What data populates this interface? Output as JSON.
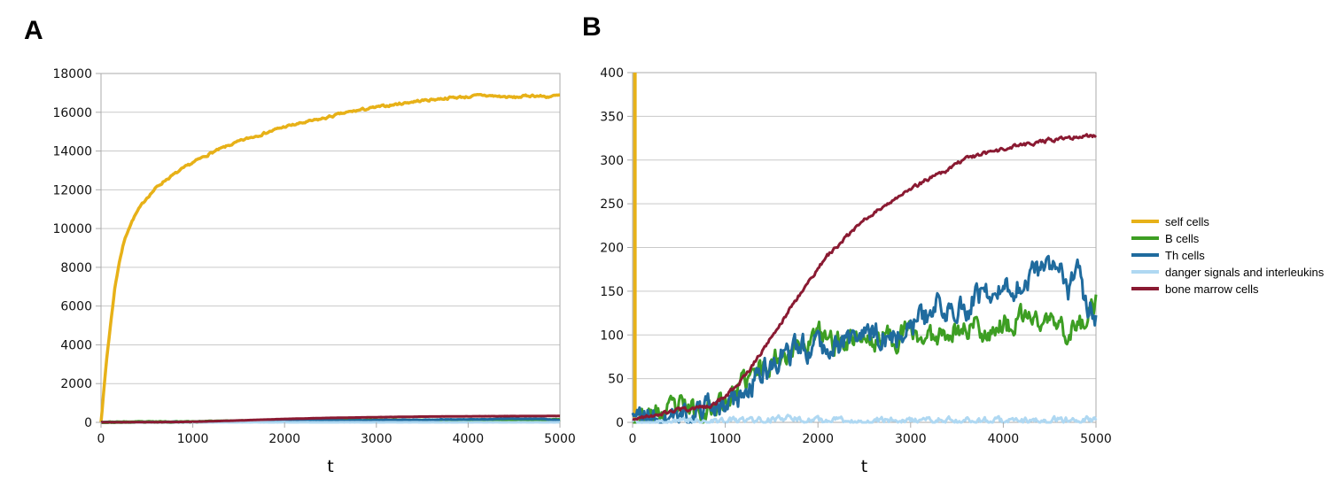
{
  "figure": {
    "background": "#ffffff"
  },
  "legend": {
    "position": "right-of-panel-B",
    "items": [
      {
        "label": "self cells",
        "color": "#E7B118"
      },
      {
        "label": "B cells",
        "color": "#3D9E23"
      },
      {
        "label": "Th cells",
        "color": "#1F6B9E"
      },
      {
        "label": "danger signals and interleukins",
        "color": "#AFD8F2"
      },
      {
        "label": "bone marrow cells",
        "color": "#8A1A32"
      }
    ]
  },
  "style": {
    "gridline_color": "#c9c9c9",
    "border_color": "#ababab",
    "tick_label_color": "#111111",
    "grid": "horizontal-only"
  },
  "chart_data": [
    {
      "type": "line",
      "panel_label": "A",
      "title": "",
      "xlabel": "t",
      "ylabel": "",
      "xlim": [
        0,
        5000
      ],
      "ylim": [
        0,
        18000
      ],
      "xticks": [
        0,
        1000,
        2000,
        3000,
        4000,
        5000
      ],
      "yticks": [
        0,
        2000,
        4000,
        6000,
        8000,
        10000,
        12000,
        14000,
        16000,
        18000
      ],
      "series": [
        {
          "name": "self cells",
          "color": "#E7B118",
          "width": 3.5,
          "noise": 40,
          "seed": 7,
          "anchors": [
            [
              0,
              50
            ],
            [
              30,
              1600
            ],
            [
              60,
              3200
            ],
            [
              100,
              4900
            ],
            [
              150,
              6900
            ],
            [
              200,
              8300
            ],
            [
              250,
              9300
            ],
            [
              300,
              10000
            ],
            [
              350,
              10500
            ],
            [
              400,
              10900
            ],
            [
              500,
              11600
            ],
            [
              600,
              12100
            ],
            [
              700,
              12500
            ],
            [
              800,
              12800
            ],
            [
              900,
              13100
            ],
            [
              1000,
              13400
            ],
            [
              1200,
              13900
            ],
            [
              1400,
              14300
            ],
            [
              1600,
              14650
            ],
            [
              1800,
              14950
            ],
            [
              2000,
              15250
            ],
            [
              2200,
              15450
            ],
            [
              2400,
              15650
            ],
            [
              2600,
              15900
            ],
            [
              2800,
              16100
            ],
            [
              3000,
              16250
            ],
            [
              3200,
              16400
            ],
            [
              3400,
              16550
            ],
            [
              3600,
              16650
            ],
            [
              3800,
              16750
            ],
            [
              4000,
              16800
            ],
            [
              4150,
              16880
            ],
            [
              4300,
              16830
            ],
            [
              4500,
              16760
            ],
            [
              4700,
              16870
            ],
            [
              4850,
              16800
            ],
            [
              5000,
              16860
            ]
          ]
        },
        {
          "name": "B cells",
          "color": "#3D9E23",
          "width": 4,
          "noise": 9,
          "seed": 23,
          "anchors": [
            [
              0,
              2
            ],
            [
              500,
              16
            ],
            [
              1000,
              25
            ],
            [
              1500,
              72
            ],
            [
              2000,
              100
            ],
            [
              2500,
              97
            ],
            [
              3000,
              104
            ],
            [
              3500,
              104
            ],
            [
              4000,
              112
            ],
            [
              4500,
              118
            ],
            [
              5000,
              136
            ]
          ]
        },
        {
          "name": "Th cells",
          "color": "#1F6B9E",
          "width": 3,
          "noise": 10,
          "seed": 41,
          "anchors": [
            [
              0,
              2
            ],
            [
              500,
              11
            ],
            [
              1000,
              19
            ],
            [
              1500,
              64
            ],
            [
              2000,
              94
            ],
            [
              2500,
              95
            ],
            [
              3000,
              108
            ],
            [
              3500,
              138
            ],
            [
              4000,
              154
            ],
            [
              4300,
              172
            ],
            [
              4600,
              190
            ],
            [
              4800,
              166
            ],
            [
              5000,
              122
            ]
          ]
        },
        {
          "name": "danger signals and interleukins",
          "color": "#AFD8F2",
          "width": 3,
          "noise": 2.5,
          "seed": 55,
          "anchors": [
            [
              0,
              1
            ],
            [
              1700,
              4
            ],
            [
              3000,
              2
            ],
            [
              5000,
              3
            ]
          ]
        },
        {
          "name": "bone marrow cells",
          "color": "#8A1A32",
          "width": 3,
          "noise": 1.5,
          "seed": 67,
          "anchors": [
            [
              0,
              2
            ],
            [
              800,
              18
            ],
            [
              1000,
              30
            ],
            [
              1500,
              98
            ],
            [
              2000,
              176
            ],
            [
              2500,
              231
            ],
            [
              3000,
              267
            ],
            [
              3500,
              296
            ],
            [
              4000,
              312
            ],
            [
              4500,
              323
            ],
            [
              5000,
              328
            ]
          ]
        }
      ]
    },
    {
      "type": "line",
      "panel_label": "B",
      "title": "",
      "xlabel": "t",
      "ylabel": "",
      "xlim": [
        0,
        5000
      ],
      "ylim": [
        0,
        400
      ],
      "xticks": [
        0,
        1000,
        2000,
        3000,
        4000,
        5000
      ],
      "yticks": [
        0,
        50,
        100,
        150,
        200,
        250,
        300,
        350,
        400
      ],
      "series": [
        {
          "name": "self cells",
          "color": "#E7B118",
          "width": 4,
          "vertical": true,
          "clipped_off_scale": true,
          "anchors": [
            [
              25,
              0
            ],
            [
              25,
              400
            ]
          ]
        },
        {
          "name": "B cells",
          "color": "#3D9E23",
          "width": 3,
          "noise": 9,
          "seed": 23,
          "anchors": [
            [
              0,
              2
            ],
            [
              100,
              4
            ],
            [
              200,
              6
            ],
            [
              300,
              9
            ],
            [
              400,
              12
            ],
            [
              500,
              16
            ],
            [
              600,
              15
            ],
            [
              700,
              14
            ],
            [
              800,
              16
            ],
            [
              900,
              20
            ],
            [
              1000,
              26
            ],
            [
              1100,
              34
            ],
            [
              1200,
              44
            ],
            [
              1300,
              54
            ],
            [
              1400,
              64
            ],
            [
              1500,
              72
            ],
            [
              1600,
              78
            ],
            [
              1700,
              84
            ],
            [
              1800,
              88
            ],
            [
              1900,
              93
            ],
            [
              2000,
              100
            ],
            [
              2100,
              94
            ],
            [
              2200,
              90
            ],
            [
              2300,
              96
            ],
            [
              2400,
              100
            ],
            [
              2500,
              97
            ],
            [
              2600,
              88
            ],
            [
              2700,
              100
            ],
            [
              2800,
              96
            ],
            [
              2900,
              100
            ],
            [
              3000,
              104
            ],
            [
              3100,
              98
            ],
            [
              3200,
              95
            ],
            [
              3300,
              103
            ],
            [
              3400,
              108
            ],
            [
              3500,
              104
            ],
            [
              3600,
              108
            ],
            [
              3700,
              112
            ],
            [
              3800,
              104
            ],
            [
              3900,
              108
            ],
            [
              4000,
              112
            ],
            [
              4100,
              108
            ],
            [
              4200,
              118
            ],
            [
              4300,
              122
            ],
            [
              4400,
              112
            ],
            [
              4500,
              118
            ],
            [
              4600,
              108
            ],
            [
              4700,
              104
            ],
            [
              4800,
              110
            ],
            [
              4900,
              118
            ],
            [
              5000,
              136
            ]
          ]
        },
        {
          "name": "Th cells",
          "color": "#1F6B9E",
          "width": 3,
          "noise": 10,
          "seed": 41,
          "anchors": [
            [
              0,
              2
            ],
            [
              200,
              5
            ],
            [
              400,
              9
            ],
            [
              600,
              13
            ],
            [
              800,
              15
            ],
            [
              1000,
              19
            ],
            [
              1100,
              26
            ],
            [
              1200,
              34
            ],
            [
              1300,
              44
            ],
            [
              1400,
              56
            ],
            [
              1500,
              64
            ],
            [
              1600,
              72
            ],
            [
              1700,
              78
            ],
            [
              1800,
              84
            ],
            [
              1900,
              88
            ],
            [
              2000,
              94
            ],
            [
              2100,
              90
            ],
            [
              2200,
              88
            ],
            [
              2300,
              94
            ],
            [
              2400,
              99
            ],
            [
              2500,
              95
            ],
            [
              2600,
              100
            ],
            [
              2700,
              98
            ],
            [
              2800,
              94
            ],
            [
              2900,
              102
            ],
            [
              3000,
              108
            ],
            [
              3100,
              116
            ],
            [
              3200,
              124
            ],
            [
              3300,
              134
            ],
            [
              3400,
              128
            ],
            [
              3500,
              138
            ],
            [
              3600,
              132
            ],
            [
              3700,
              142
            ],
            [
              3800,
              148
            ],
            [
              3900,
              140
            ],
            [
              4000,
              154
            ],
            [
              4100,
              148
            ],
            [
              4200,
              158
            ],
            [
              4300,
              172
            ],
            [
              4450,
              168
            ],
            [
              4600,
              190
            ],
            [
              4700,
              148
            ],
            [
              4800,
              166
            ],
            [
              4900,
              134
            ],
            [
              5000,
              122
            ]
          ]
        },
        {
          "name": "danger signals and interleukins",
          "color": "#AFD8F2",
          "width": 3,
          "noise": 2.5,
          "seed": 55,
          "anchors": [
            [
              0,
              1
            ],
            [
              1000,
              2
            ],
            [
              1700,
              4
            ],
            [
              2000,
              2
            ],
            [
              3000,
              2
            ],
            [
              4000,
              2
            ],
            [
              5000,
              3
            ]
          ]
        },
        {
          "name": "bone marrow cells",
          "color": "#8A1A32",
          "width": 3,
          "noise": 1.5,
          "seed": 67,
          "anchors": [
            [
              0,
              2
            ],
            [
              100,
              6
            ],
            [
              200,
              8
            ],
            [
              300,
              10
            ],
            [
              400,
              12
            ],
            [
              500,
              14
            ],
            [
              600,
              15
            ],
            [
              700,
              16
            ],
            [
              800,
              18
            ],
            [
              900,
              22
            ],
            [
              1000,
              30
            ],
            [
              1100,
              40
            ],
            [
              1200,
              52
            ],
            [
              1300,
              66
            ],
            [
              1400,
              82
            ],
            [
              1500,
              98
            ],
            [
              1600,
              114
            ],
            [
              1700,
              130
            ],
            [
              1800,
              146
            ],
            [
              1900,
              162
            ],
            [
              2000,
              176
            ],
            [
              2100,
              190
            ],
            [
              2200,
              201
            ],
            [
              2300,
              211
            ],
            [
              2400,
              221
            ],
            [
              2500,
              231
            ],
            [
              2600,
              239
            ],
            [
              2700,
              247
            ],
            [
              2800,
              254
            ],
            [
              2900,
              261
            ],
            [
              3000,
              267
            ],
            [
              3200,
              279
            ],
            [
              3400,
              289
            ],
            [
              3500,
              296
            ],
            [
              3600,
              301
            ],
            [
              3800,
              307
            ],
            [
              4000,
              312
            ],
            [
              4200,
              317
            ],
            [
              4400,
              321
            ],
            [
              4600,
              325
            ],
            [
              4800,
              326
            ],
            [
              5000,
              328
            ]
          ]
        }
      ]
    }
  ]
}
